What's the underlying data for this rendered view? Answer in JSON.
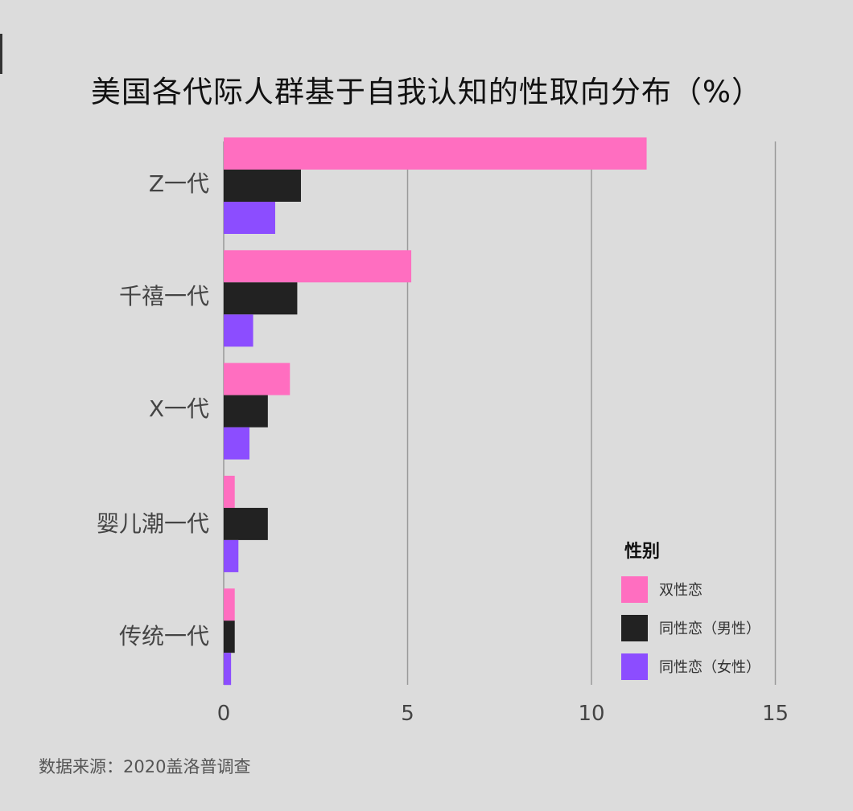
{
  "chart_data": {
    "type": "bar",
    "orientation": "horizontal",
    "title": "美国各代际人群基于自我认知的性取向分布（%）",
    "categories": [
      "Z一代",
      "千禧一代",
      "X一代",
      "婴儿潮一代",
      "传统一代"
    ],
    "series": [
      {
        "name": "双性恋",
        "color": "#ff6ec0",
        "values": [
          11.5,
          5.1,
          1.8,
          0.3,
          0.3
        ]
      },
      {
        "name": "同性恋（男性）",
        "color": "#222222",
        "values": [
          2.1,
          2.0,
          1.2,
          1.2,
          0.3
        ]
      },
      {
        "name": "同性恋（女性）",
        "color": "#8c4dff",
        "values": [
          1.4,
          0.8,
          0.7,
          0.4,
          0.2
        ]
      }
    ],
    "xlim": [
      0,
      15
    ],
    "xticks": [
      0,
      5,
      10,
      15
    ],
    "grid": true,
    "legend": {
      "title": "性别",
      "position": "bottom-right"
    }
  },
  "source_note": "数据来源：2020盖洛普调查"
}
